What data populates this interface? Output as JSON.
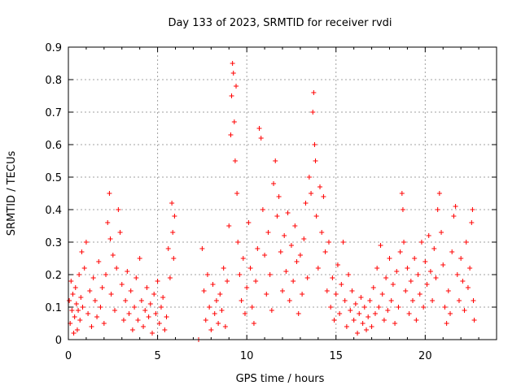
{
  "chart_data": {
    "type": "scatter",
    "title": "Day 133 of 2023, SRMTID for receiver rvdi",
    "xlabel": "GPS time / hours",
    "ylabel": "SRMTID / TECUs",
    "xlim": [
      0,
      24
    ],
    "ylim": [
      0,
      0.9
    ],
    "xticks": [
      0,
      5,
      10,
      15,
      20
    ],
    "xtick_labels": [
      "0",
      "5",
      "10",
      "15",
      "20"
    ],
    "yticks": [
      0,
      0.1,
      0.2,
      0.3,
      0.4,
      0.5,
      0.6,
      0.7,
      0.8,
      0.9
    ],
    "ytick_labels": [
      "0",
      "0.1",
      "0.2",
      "0.3",
      "0.4",
      "0.5",
      "0.6",
      "0.7",
      "0.8",
      "0.9"
    ],
    "grid": true,
    "marker": "+",
    "color": "#ff0000",
    "series": [
      {
        "name": "SRMTID",
        "points": [
          [
            0.05,
            0.12
          ],
          [
            0.1,
            0.05
          ],
          [
            0.15,
            0.18
          ],
          [
            0.2,
            0.09
          ],
          [
            0.25,
            0.14
          ],
          [
            0.3,
            0.02
          ],
          [
            0.35,
            0.07
          ],
          [
            0.4,
            0.16
          ],
          [
            0.45,
            0.11
          ],
          [
            0.5,
            0.03
          ],
          [
            0.55,
            0.09
          ],
          [
            0.6,
            0.2
          ],
          [
            0.65,
            0.06
          ],
          [
            0.7,
            0.13
          ],
          [
            0.75,
            0.27
          ],
          [
            0.8,
            0.1
          ],
          [
            0.9,
            0.22
          ],
          [
            1.0,
            0.3
          ],
          [
            1.1,
            0.08
          ],
          [
            1.2,
            0.15
          ],
          [
            1.3,
            0.04
          ],
          [
            1.4,
            0.19
          ],
          [
            1.5,
            0.12
          ],
          [
            1.6,
            0.07
          ],
          [
            1.7,
            0.24
          ],
          [
            1.8,
            0.1
          ],
          [
            1.9,
            0.16
          ],
          [
            2.0,
            0.05
          ],
          [
            2.1,
            0.2
          ],
          [
            2.2,
            0.36
          ],
          [
            2.3,
            0.45
          ],
          [
            2.35,
            0.31
          ],
          [
            2.4,
            0.14
          ],
          [
            2.5,
            0.26
          ],
          [
            2.6,
            0.09
          ],
          [
            2.7,
            0.22
          ],
          [
            2.8,
            0.4
          ],
          [
            2.9,
            0.33
          ],
          [
            3.0,
            0.17
          ],
          [
            3.1,
            0.06
          ],
          [
            3.2,
            0.12
          ],
          [
            3.3,
            0.21
          ],
          [
            3.4,
            0.08
          ],
          [
            3.5,
            0.15
          ],
          [
            3.6,
            0.03
          ],
          [
            3.7,
            0.1
          ],
          [
            3.8,
            0.19
          ],
          [
            3.9,
            0.06
          ],
          [
            4.0,
            0.25
          ],
          [
            4.1,
            0.12
          ],
          [
            4.2,
            0.04
          ],
          [
            4.3,
            0.09
          ],
          [
            4.4,
            0.16
          ],
          [
            4.5,
            0.07
          ],
          [
            4.6,
            0.11
          ],
          [
            4.7,
            0.02
          ],
          [
            4.8,
            0.14
          ],
          [
            4.9,
            0.08
          ],
          [
            5.0,
            0.18
          ],
          [
            5.1,
            0.05
          ],
          [
            5.2,
            0.1
          ],
          [
            5.3,
            0.13
          ],
          [
            5.4,
            0.03
          ],
          [
            5.5,
            0.07
          ],
          [
            5.6,
            0.28
          ],
          [
            5.7,
            0.19
          ],
          [
            5.8,
            0.42
          ],
          [
            5.85,
            0.33
          ],
          [
            5.9,
            0.25
          ],
          [
            5.95,
            0.38
          ],
          [
            7.3,
            0.0
          ],
          [
            7.5,
            0.28
          ],
          [
            7.6,
            0.15
          ],
          [
            7.7,
            0.06
          ],
          [
            7.8,
            0.2
          ],
          [
            7.9,
            0.1
          ],
          [
            8.0,
            0.03
          ],
          [
            8.1,
            0.17
          ],
          [
            8.2,
            0.08
          ],
          [
            8.3,
            0.12
          ],
          [
            8.4,
            0.05
          ],
          [
            8.5,
            0.14
          ],
          [
            8.6,
            0.09
          ],
          [
            8.7,
            0.22
          ],
          [
            8.8,
            0.04
          ],
          [
            8.9,
            0.18
          ],
          [
            9.0,
            0.35
          ],
          [
            9.1,
            0.63
          ],
          [
            9.15,
            0.75
          ],
          [
            9.2,
            0.85
          ],
          [
            9.25,
            0.82
          ],
          [
            9.3,
            0.67
          ],
          [
            9.35,
            0.55
          ],
          [
            9.4,
            0.78
          ],
          [
            9.45,
            0.45
          ],
          [
            9.5,
            0.3
          ],
          [
            9.6,
            0.2
          ],
          [
            9.7,
            0.12
          ],
          [
            9.8,
            0.25
          ],
          [
            9.9,
            0.08
          ],
          [
            10.0,
            0.16
          ],
          [
            10.1,
            0.36
          ],
          [
            10.2,
            0.22
          ],
          [
            10.3,
            0.1
          ],
          [
            10.4,
            0.05
          ],
          [
            10.5,
            0.18
          ],
          [
            10.6,
            0.28
          ],
          [
            10.7,
            0.65
          ],
          [
            10.8,
            0.62
          ],
          [
            10.9,
            0.4
          ],
          [
            11.0,
            0.26
          ],
          [
            11.1,
            0.14
          ],
          [
            11.2,
            0.33
          ],
          [
            11.3,
            0.2
          ],
          [
            11.4,
            0.09
          ],
          [
            11.5,
            0.48
          ],
          [
            11.6,
            0.55
          ],
          [
            11.7,
            0.38
          ],
          [
            11.8,
            0.44
          ],
          [
            11.9,
            0.27
          ],
          [
            12.0,
            0.15
          ],
          [
            12.1,
            0.32
          ],
          [
            12.2,
            0.21
          ],
          [
            12.3,
            0.39
          ],
          [
            12.4,
            0.12
          ],
          [
            12.5,
            0.29
          ],
          [
            12.6,
            0.18
          ],
          [
            12.7,
            0.35
          ],
          [
            12.8,
            0.24
          ],
          [
            12.9,
            0.08
          ],
          [
            13.0,
            0.26
          ],
          [
            13.1,
            0.14
          ],
          [
            13.2,
            0.31
          ],
          [
            13.3,
            0.42
          ],
          [
            13.4,
            0.19
          ],
          [
            13.5,
            0.5
          ],
          [
            13.6,
            0.45
          ],
          [
            13.7,
            0.7
          ],
          [
            13.75,
            0.76
          ],
          [
            13.8,
            0.6
          ],
          [
            13.85,
            0.55
          ],
          [
            13.9,
            0.38
          ],
          [
            14.0,
            0.22
          ],
          [
            14.1,
            0.47
          ],
          [
            14.2,
            0.33
          ],
          [
            14.3,
            0.44
          ],
          [
            14.4,
            0.27
          ],
          [
            14.5,
            0.15
          ],
          [
            14.6,
            0.3
          ],
          [
            14.7,
            0.1
          ],
          [
            14.8,
            0.19
          ],
          [
            14.9,
            0.06
          ],
          [
            15.0,
            0.14
          ],
          [
            15.1,
            0.23
          ],
          [
            15.2,
            0.08
          ],
          [
            15.3,
            0.17
          ],
          [
            15.4,
            0.3
          ],
          [
            15.5,
            0.12
          ],
          [
            15.6,
            0.04
          ],
          [
            15.7,
            0.2
          ],
          [
            15.8,
            0.09
          ],
          [
            15.9,
            0.15
          ],
          [
            16.0,
            0.06
          ],
          [
            16.1,
            0.11
          ],
          [
            16.2,
            0.02
          ],
          [
            16.3,
            0.08
          ],
          [
            16.4,
            0.13
          ],
          [
            16.5,
            0.05
          ],
          [
            16.6,
            0.1
          ],
          [
            16.7,
            0.03
          ],
          [
            16.8,
            0.07
          ],
          [
            16.9,
            0.12
          ],
          [
            17.0,
            0.04
          ],
          [
            17.1,
            0.16
          ],
          [
            17.2,
            0.08
          ],
          [
            17.3,
            0.22
          ],
          [
            17.4,
            0.1
          ],
          [
            17.5,
            0.29
          ],
          [
            17.6,
            0.14
          ],
          [
            17.7,
            0.06
          ],
          [
            17.8,
            0.19
          ],
          [
            17.9,
            0.09
          ],
          [
            18.0,
            0.25
          ],
          [
            18.1,
            0.12
          ],
          [
            18.2,
            0.17
          ],
          [
            18.3,
            0.05
          ],
          [
            18.4,
            0.21
          ],
          [
            18.5,
            0.1
          ],
          [
            18.6,
            0.27
          ],
          [
            18.7,
            0.45
          ],
          [
            18.75,
            0.4
          ],
          [
            18.8,
            0.3
          ],
          [
            18.9,
            0.15
          ],
          [
            19.0,
            0.22
          ],
          [
            19.1,
            0.08
          ],
          [
            19.2,
            0.18
          ],
          [
            19.3,
            0.12
          ],
          [
            19.4,
            0.25
          ],
          [
            19.5,
            0.06
          ],
          [
            19.6,
            0.2
          ],
          [
            19.7,
            0.14
          ],
          [
            19.8,
            0.3
          ],
          [
            19.9,
            0.1
          ],
          [
            20.0,
            0.24
          ],
          [
            20.1,
            0.17
          ],
          [
            20.2,
            0.32
          ],
          [
            20.3,
            0.21
          ],
          [
            20.4,
            0.12
          ],
          [
            20.5,
            0.28
          ],
          [
            20.6,
            0.19
          ],
          [
            20.7,
            0.4
          ],
          [
            20.8,
            0.45
          ],
          [
            20.9,
            0.33
          ],
          [
            21.0,
            0.23
          ],
          [
            21.1,
            0.1
          ],
          [
            21.2,
            0.05
          ],
          [
            21.3,
            0.15
          ],
          [
            21.4,
            0.08
          ],
          [
            21.5,
            0.27
          ],
          [
            21.6,
            0.38
          ],
          [
            21.7,
            0.41
          ],
          [
            21.8,
            0.2
          ],
          [
            21.9,
            0.12
          ],
          [
            22.0,
            0.25
          ],
          [
            22.1,
            0.18
          ],
          [
            22.2,
            0.09
          ],
          [
            22.3,
            0.3
          ],
          [
            22.4,
            0.16
          ],
          [
            22.5,
            0.22
          ],
          [
            22.6,
            0.36
          ],
          [
            22.65,
            0.4
          ],
          [
            22.7,
            0.12
          ],
          [
            22.75,
            0.06
          ]
        ]
      }
    ]
  }
}
